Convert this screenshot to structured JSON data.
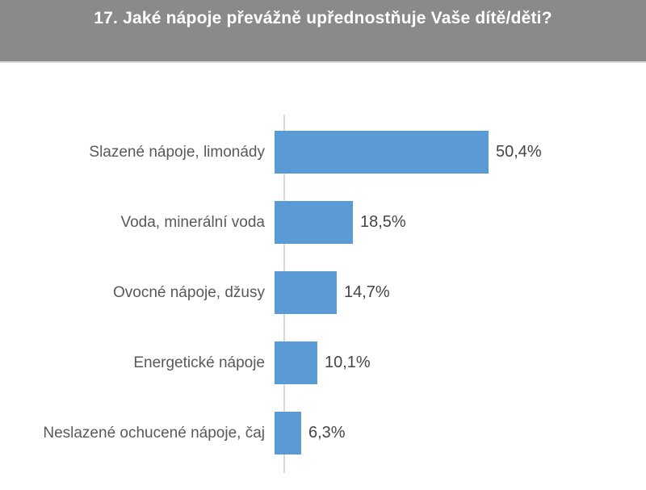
{
  "header": {
    "title": "17. Jaké nápoje převážně upřednostňuje Vaše dítě/děti?"
  },
  "chart_data": {
    "type": "bar",
    "orientation": "horizontal",
    "title": "17. Jaké nápoje převážně upřednostňuje Vaše dítě/děti?",
    "categories": [
      "Slazené nápoje, limonády",
      "Voda, minerální voda",
      "Ovocné nápoje, džusy",
      "Energetické nápoje",
      "Neslazené ochucené nápoje, čaj"
    ],
    "values": [
      50.4,
      18.5,
      14.7,
      10.1,
      6.3
    ],
    "value_labels": [
      "50,4%",
      "18,5%",
      "14,7%",
      "10,1%",
      "6,3%"
    ],
    "xlabel": "",
    "ylabel": "",
    "xlim": [
      0,
      55
    ],
    "grid": false,
    "legend": false,
    "bar_color": "#5b9bd5",
    "axis_line_color": "#d9d9d9"
  },
  "colors": {
    "header_bg": "#8a8a8a",
    "header_text": "#ffffff",
    "category_label_text": "#595959",
    "value_label_text": "#454545",
    "background": "#ffffff"
  }
}
